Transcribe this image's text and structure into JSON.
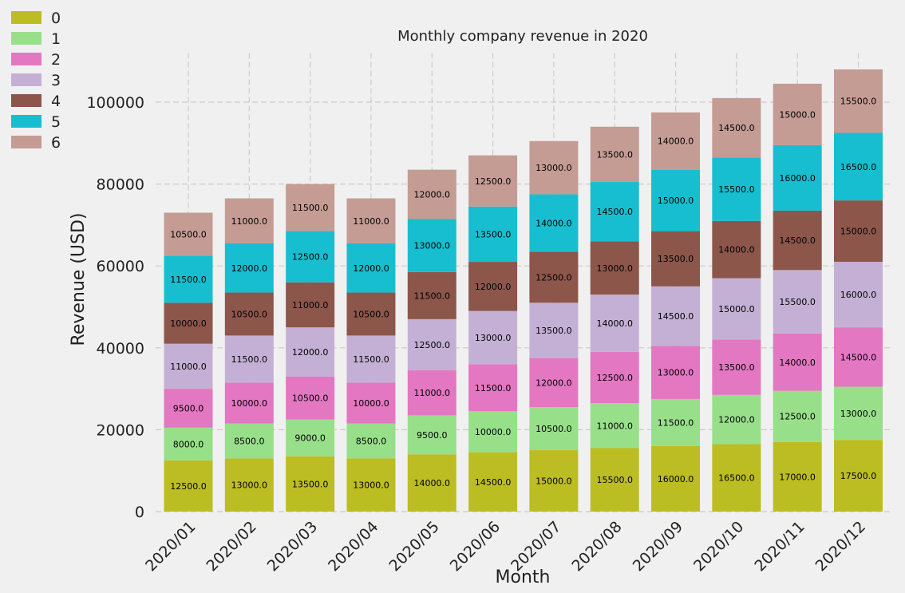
{
  "chart_data": {
    "type": "bar",
    "stacked": true,
    "title": "Monthly company revenue in 2020",
    "xlabel": "Month",
    "ylabel": "Revenue (USD)",
    "ylim": [
      0,
      112000
    ],
    "yticks": [
      0,
      20000,
      40000,
      60000,
      80000,
      100000
    ],
    "grid": true,
    "legend_position": "upper-left-outside",
    "categories": [
      "2020/01",
      "2020/02",
      "2020/03",
      "2020/04",
      "2020/05",
      "2020/06",
      "2020/07",
      "2020/08",
      "2020/09",
      "2020/10",
      "2020/11",
      "2020/12"
    ],
    "series": [
      {
        "name": "0",
        "color": "#bcbd22",
        "values": [
          12500,
          13000,
          13500,
          13000,
          14000,
          14500,
          15000,
          15500,
          16000,
          16500,
          17000,
          17500
        ]
      },
      {
        "name": "1",
        "color": "#98df8a",
        "values": [
          8000,
          8500,
          9000,
          8500,
          9500,
          10000,
          10500,
          11000,
          11500,
          12000,
          12500,
          13000
        ]
      },
      {
        "name": "2",
        "color": "#e377c2",
        "values": [
          9500,
          10000,
          10500,
          10000,
          11000,
          11500,
          12000,
          12500,
          13000,
          13500,
          14000,
          14500
        ]
      },
      {
        "name": "3",
        "color": "#c5b0d5",
        "values": [
          11000,
          11500,
          12000,
          11500,
          12500,
          13000,
          13500,
          14000,
          14500,
          15000,
          15500,
          16000
        ]
      },
      {
        "name": "4",
        "color": "#8c564b",
        "values": [
          10000,
          10500,
          11000,
          10500,
          11500,
          12000,
          12500,
          13000,
          13500,
          14000,
          14500,
          15000
        ]
      },
      {
        "name": "5",
        "color": "#17becf",
        "values": [
          11500,
          12000,
          12500,
          12000,
          13000,
          13500,
          14000,
          14500,
          15000,
          15500,
          16000,
          16500
        ]
      },
      {
        "name": "6",
        "color": "#c49c94",
        "values": [
          10500,
          11000,
          11500,
          11000,
          12000,
          12500,
          13000,
          13500,
          14000,
          14500,
          15000,
          15500
        ]
      }
    ]
  }
}
